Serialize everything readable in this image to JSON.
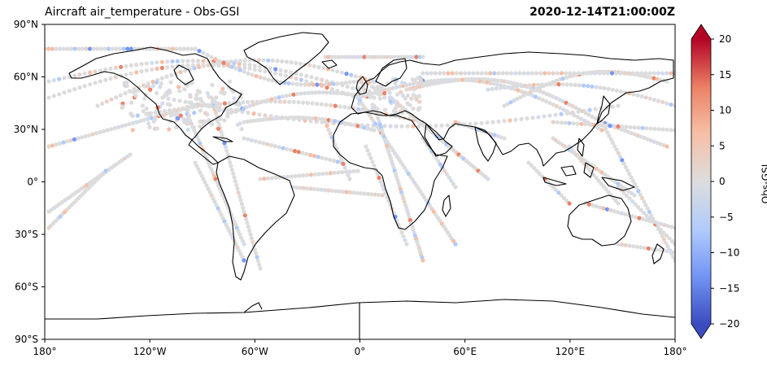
{
  "title": "Aircraft air_temperature - Obs-GSI",
  "timestamp": "2020-12-14T21:00:00Z",
  "colorbar": {
    "label": "Obs-GSI",
    "ticks": [
      "20",
      "15",
      "10",
      "5",
      "0",
      "−5",
      "−10",
      "−15",
      "−20"
    ],
    "range": [
      -20,
      20
    ],
    "colormap": "coolwarm",
    "colors": [
      "#3b4cc0",
      "#7396f5",
      "#b0cbfc",
      "#dddddd",
      "#f6bfa6",
      "#ec8165",
      "#b40426"
    ]
  },
  "map": {
    "projection": "PlateCarree",
    "lon_ticks": [
      "180°",
      "120°W",
      "60°W",
      "0°",
      "60°E",
      "120°E",
      "180°"
    ],
    "lat_ticks": [
      "90°N",
      "60°N",
      "30°N",
      "0°",
      "30°S",
      "60°S",
      "90°S"
    ],
    "lon_range": [
      -180,
      180
    ],
    "lat_range": [
      -90,
      90
    ],
    "coastline_color": "#000000",
    "observation_marker": "filled circle",
    "dominant_value_color": "#dddddd"
  }
}
